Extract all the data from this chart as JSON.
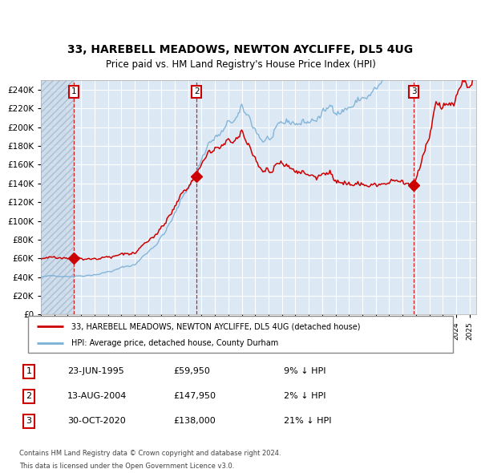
{
  "title1": "33, HAREBELL MEADOWS, NEWTON AYCLIFFE, DL5 4UG",
  "title2": "Price paid vs. HM Land Registry's House Price Index (HPI)",
  "legend1": "33, HAREBELL MEADOWS, NEWTON AYCLIFFE, DL5 4UG (detached house)",
  "legend2": "HPI: Average price, detached house, County Durham",
  "sale1_date": "23-JUN-1995",
  "sale1_price": 59950,
  "sale1_hpi": "9% ↓ HPI",
  "sale2_date": "13-AUG-2004",
  "sale2_price": 147950,
  "sale2_hpi": "2% ↓ HPI",
  "sale3_date": "30-OCT-2020",
  "sale3_price": 138000,
  "sale3_hpi": "21% ↓ HPI",
  "footer1": "Contains HM Land Registry data © Crown copyright and database right 2024.",
  "footer2": "This data is licensed under the Open Government Licence v3.0.",
  "ylim": [
    0,
    250000
  ],
  "yticks": [
    0,
    20000,
    40000,
    60000,
    80000,
    100000,
    120000,
    140000,
    160000,
    180000,
    200000,
    220000,
    240000
  ],
  "background_color": "#dce9f5",
  "hatch_color": "#c0c8d8",
  "hpi_color": "#7bafd4",
  "price_color": "#cc0000",
  "vline_color": "#cc0000",
  "marker_color": "#cc0000",
  "sale1_x": 1995.47,
  "sale2_x": 2004.62,
  "sale3_x": 2020.83,
  "start_year": 1993.0,
  "end_year": 2025.5
}
